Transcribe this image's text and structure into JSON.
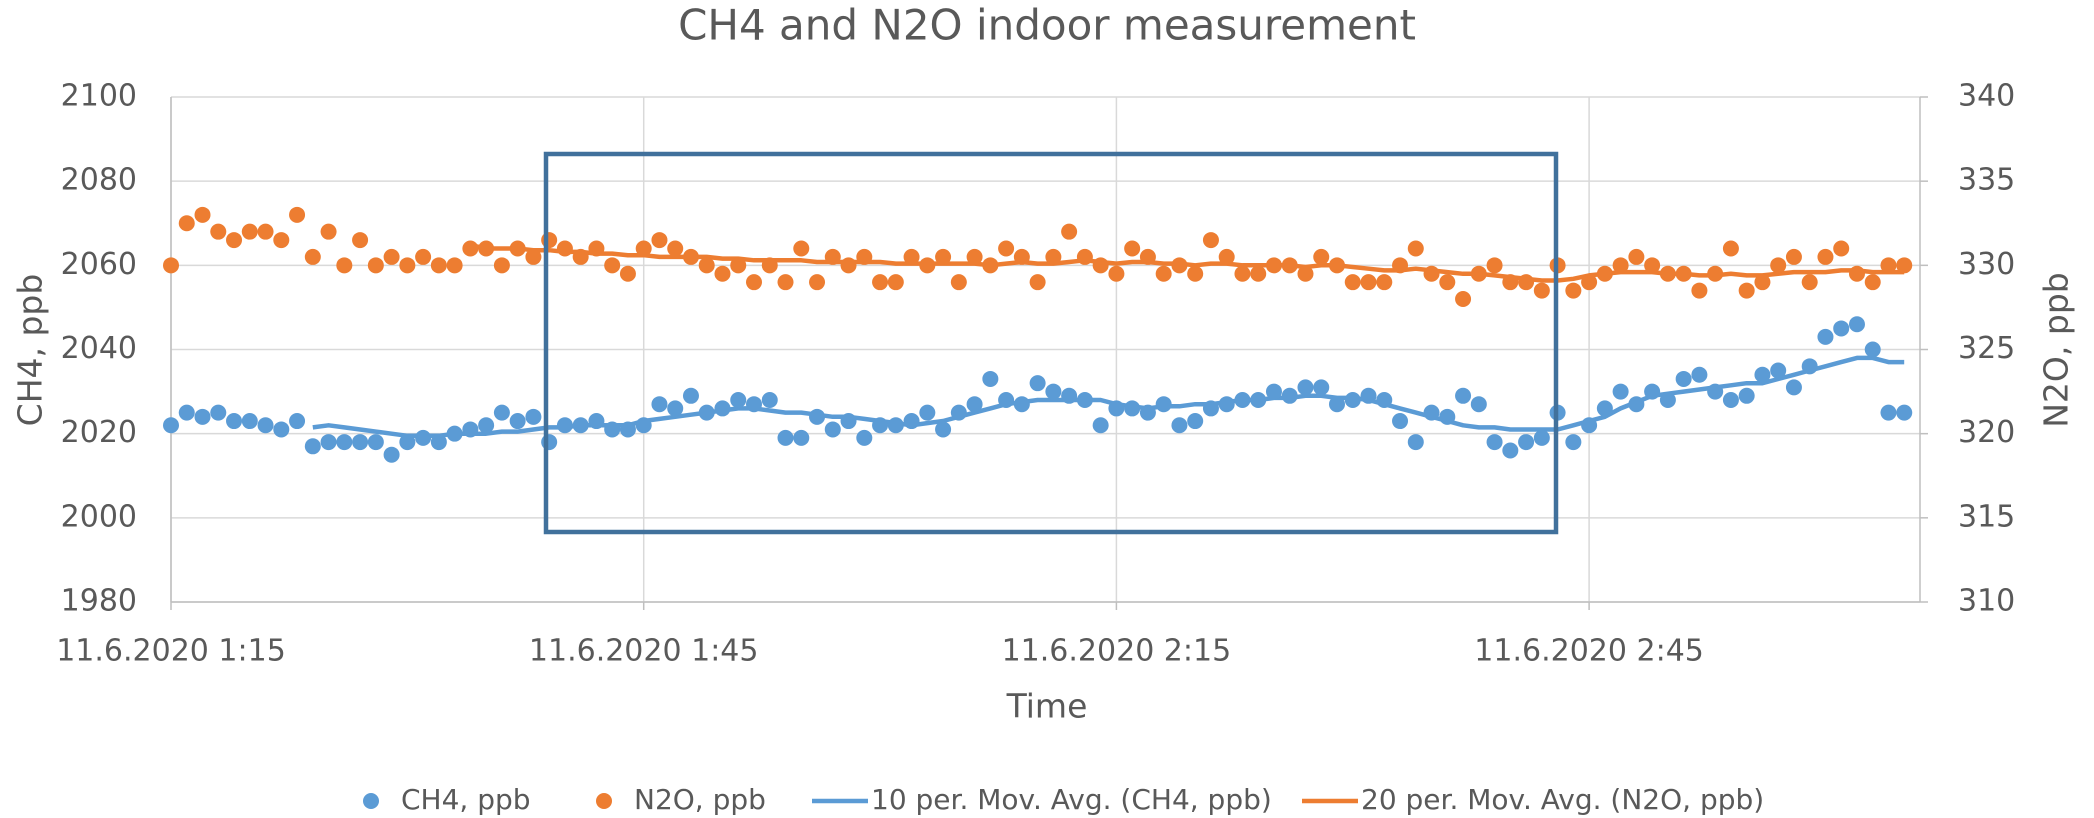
{
  "chart_data": {
    "type": "scatter",
    "title": "CH4 and N2O indoor measurement",
    "x_label": "Time",
    "y_label": "CH4, ppb",
    "y2_label": "N2O, ppb",
    "xlim": [
      "11.6.2020 1:15",
      "11.6.2020 3:06"
    ],
    "xticks": [
      "11.6.2020 1:15",
      "11.6.2020 1:45",
      "11.6.2020 2:15",
      "11.6.2020 2:45"
    ],
    "ylim": [
      1980,
      2100
    ],
    "yticks": [
      1980,
      2000,
      2020,
      2040,
      2060,
      2080,
      2100
    ],
    "y2lim": [
      310,
      340
    ],
    "y2ticks": [
      310,
      315,
      320,
      325,
      330,
      335,
      340
    ],
    "grid": true,
    "legend": "bottom",
    "x": [
      "11.6.2020 1:15",
      "11.6.2020 1:16",
      "11.6.2020 1:17",
      "11.6.2020 1:18",
      "11.6.2020 1:19",
      "11.6.2020 1:20",
      "11.6.2020 1:21",
      "11.6.2020 1:22",
      "11.6.2020 1:23",
      "11.6.2020 1:24",
      "11.6.2020 1:25",
      "11.6.2020 1:26",
      "11.6.2020 1:27",
      "11.6.2020 1:28",
      "11.6.2020 1:29",
      "11.6.2020 1:30",
      "11.6.2020 1:31",
      "11.6.2020 1:32",
      "11.6.2020 1:33",
      "11.6.2020 1:34",
      "11.6.2020 1:35",
      "11.6.2020 1:36",
      "11.6.2020 1:37",
      "11.6.2020 1:38",
      "11.6.2020 1:39",
      "11.6.2020 1:40",
      "11.6.2020 1:41",
      "11.6.2020 1:42",
      "11.6.2020 1:43",
      "11.6.2020 1:44",
      "11.6.2020 1:45",
      "11.6.2020 1:46",
      "11.6.2020 1:47",
      "11.6.2020 1:48",
      "11.6.2020 1:49",
      "11.6.2020 1:50",
      "11.6.2020 1:51",
      "11.6.2020 1:52",
      "11.6.2020 1:53",
      "11.6.2020 1:54",
      "11.6.2020 1:55",
      "11.6.2020 1:56",
      "11.6.2020 1:57",
      "11.6.2020 1:58",
      "11.6.2020 1:59",
      "11.6.2020 2:00",
      "11.6.2020 2:01",
      "11.6.2020 2:02",
      "11.6.2020 2:03",
      "11.6.2020 2:04",
      "11.6.2020 2:05",
      "11.6.2020 2:06",
      "11.6.2020 2:07",
      "11.6.2020 2:08",
      "11.6.2020 2:09",
      "11.6.2020 2:10",
      "11.6.2020 2:11",
      "11.6.2020 2:12",
      "11.6.2020 2:13",
      "11.6.2020 2:14",
      "11.6.2020 2:15",
      "11.6.2020 2:16",
      "11.6.2020 2:17",
      "11.6.2020 2:18",
      "11.6.2020 2:19",
      "11.6.2020 2:20",
      "11.6.2020 2:21",
      "11.6.2020 2:22",
      "11.6.2020 2:23",
      "11.6.2020 2:24",
      "11.6.2020 2:25",
      "11.6.2020 2:26",
      "11.6.2020 2:27",
      "11.6.2020 2:28",
      "11.6.2020 2:29",
      "11.6.2020 2:30",
      "11.6.2020 2:31",
      "11.6.2020 2:32",
      "11.6.2020 2:33",
      "11.6.2020 2:34",
      "11.6.2020 2:35",
      "11.6.2020 2:36",
      "11.6.2020 2:37",
      "11.6.2020 2:38",
      "11.6.2020 2:39",
      "11.6.2020 2:40",
      "11.6.2020 2:41",
      "11.6.2020 2:42",
      "11.6.2020 2:43",
      "11.6.2020 2:44",
      "11.6.2020 2:45",
      "11.6.2020 2:46",
      "11.6.2020 2:47",
      "11.6.2020 2:48",
      "11.6.2020 2:49",
      "11.6.2020 2:50",
      "11.6.2020 2:51",
      "11.6.2020 2:52",
      "11.6.2020 2:53",
      "11.6.2020 2:54",
      "11.6.2020 2:55",
      "11.6.2020 2:56",
      "11.6.2020 2:57",
      "11.6.2020 2:58",
      "11.6.2020 2:59",
      "11.6.2020 3:00",
      "11.6.2020 3:01",
      "11.6.2020 3:02",
      "11.6.2020 3:03",
      "11.6.2020 3:04",
      "11.6.2020 3:05"
    ],
    "series": [
      {
        "name": "CH4, ppb",
        "style": "markers",
        "color": "#5b9bd5",
        "values": [
          2022,
          2025,
          2024,
          2025,
          2023,
          2023,
          2022,
          2021,
          2023,
          2017,
          2018,
          2018,
          2018,
          2018,
          2015,
          2018,
          2019,
          2018,
          2020,
          2021,
          2022,
          2025,
          2023,
          2024,
          2018,
          2022,
          2022,
          2023,
          2021,
          2021,
          2022,
          2027,
          2026,
          2029,
          2025,
          2026,
          2028,
          2027,
          2028,
          2019,
          2019,
          2024,
          2021,
          2023,
          2019,
          2022,
          2022,
          2023,
          2025,
          2021,
          2025,
          2027,
          2033,
          2028,
          2027,
          2032,
          2030,
          2029,
          2028,
          2022,
          2026,
          2026,
          2025,
          2027,
          2022,
          2023,
          2026,
          2027,
          2028,
          2028,
          2030,
          2029,
          2031,
          2031,
          2027,
          2028,
          2029,
          2028,
          2023,
          2018,
          2025,
          2024,
          2029,
          2027,
          2018,
          2016,
          2018,
          2019,
          2025,
          2018,
          2022,
          2026,
          2030,
          2027,
          2030,
          2028,
          2033,
          2034,
          2030,
          2028,
          2029,
          2034,
          2035,
          2031,
          2036,
          2043,
          2045,
          2046,
          2040,
          2025,
          2025
        ]
      },
      {
        "name": "N2O, ppb",
        "style": "markers",
        "axis": "y2",
        "color": "#ed7d31",
        "values": [
          330,
          332.5,
          333,
          332,
          331.5,
          332,
          332,
          331.5,
          333,
          330.5,
          332,
          330,
          331.5,
          330,
          330.5,
          330,
          330.5,
          330,
          330,
          331,
          331,
          330,
          331,
          330.5,
          331.5,
          331,
          330.5,
          331,
          330,
          329.5,
          331,
          331.5,
          331,
          330.5,
          330,
          329.5,
          330,
          329,
          330,
          329,
          331,
          329,
          330.5,
          330,
          330.5,
          329,
          329,
          330.5,
          330,
          330.5,
          329,
          330.5,
          330,
          331,
          330.5,
          329,
          330.5,
          332,
          330.5,
          330,
          329.5,
          331,
          330.5,
          329.5,
          330,
          329.5,
          331.5,
          330.5,
          329.5,
          329.5,
          330,
          330,
          329.5,
          330.5,
          330,
          329,
          329,
          329,
          330,
          331,
          329.5,
          329,
          328,
          329.5,
          330,
          329,
          329,
          328.5,
          330,
          328.5,
          329,
          329.5,
          330,
          330.5,
          330,
          329.5,
          329.5,
          328.5,
          329.5,
          331,
          328.5,
          329,
          330,
          330.5,
          329,
          330.5,
          331,
          329.5,
          329,
          330,
          330
        ]
      },
      {
        "name": "10 per. Mov. Avg. (CH4, ppb)",
        "style": "line",
        "color": "#5b9bd5",
        "values": [
          null,
          null,
          null,
          null,
          null,
          null,
          null,
          null,
          null,
          2021.5,
          2022,
          2021.5,
          2021,
          2020.5,
          2020,
          2019.5,
          2019.5,
          2019.5,
          2020,
          2020,
          2020,
          2020.5,
          2020.5,
          2021,
          2021.5,
          2021.5,
          2022,
          2022,
          2022,
          2022,
          2023,
          2023.5,
          2024,
          2024.5,
          2025,
          2025.5,
          2026,
          2026,
          2025.5,
          2025,
          2025,
          2024.5,
          2024,
          2024,
          2023.5,
          2023,
          2022.5,
          2022,
          2022.5,
          2023,
          2024,
          2025,
          2026,
          2027,
          2027.5,
          2028,
          2028,
          2028,
          2028,
          2028,
          2027,
          2026.5,
          2026,
          2026.5,
          2026.5,
          2027,
          2027,
          2027.5,
          2028,
          2028,
          2028.5,
          2028.5,
          2029,
          2029,
          2028.5,
          2028.5,
          2028,
          2027,
          2026,
          2025,
          2024,
          2023,
          2022,
          2021.5,
          2021.5,
          2021,
          2021,
          2021,
          2021,
          2022,
          2023,
          2024,
          2026,
          2027.5,
          2029,
          2029.5,
          2030,
          2030.5,
          2031,
          2031.5,
          2032,
          2032,
          2033,
          2034,
          2035,
          2036,
          2037,
          2038,
          2038,
          2037,
          2037
        ]
      },
      {
        "name": "20 per. Mov. Avg. (N2O, ppb)",
        "style": "line",
        "axis": "y2",
        "color": "#ed7d31",
        "values": [
          null,
          null,
          null,
          null,
          null,
          null,
          null,
          null,
          null,
          null,
          null,
          null,
          null,
          null,
          null,
          null,
          null,
          null,
          null,
          331.2,
          331,
          331,
          331,
          330.9,
          330.9,
          330.8,
          330.8,
          330.7,
          330.7,
          330.6,
          330.6,
          330.5,
          330.5,
          330.5,
          330.5,
          330.4,
          330.4,
          330.3,
          330.3,
          330.3,
          330.3,
          330.2,
          330.2,
          330.2,
          330.2,
          330.2,
          330.1,
          330.1,
          330.1,
          330.1,
          330.1,
          330.1,
          330,
          330.1,
          330.2,
          330.1,
          330.1,
          330.2,
          330.3,
          330.2,
          330.1,
          330.2,
          330.2,
          330.1,
          330.1,
          330,
          330.1,
          330.1,
          330,
          330,
          330,
          330,
          329.9,
          330,
          330,
          329.9,
          329.8,
          329.7,
          329.7,
          329.8,
          329.7,
          329.6,
          329.5,
          329.5,
          329.4,
          329.3,
          329.2,
          329.1,
          329.1,
          329.2,
          329.4,
          329.5,
          329.6,
          329.6,
          329.6,
          329.5,
          329.5,
          329.4,
          329.4,
          329.5,
          329.4,
          329.4,
          329.5,
          329.6,
          329.6,
          329.6,
          329.7,
          329.7,
          329.6,
          329.6,
          329.6
        ]
      }
    ]
  }
}
